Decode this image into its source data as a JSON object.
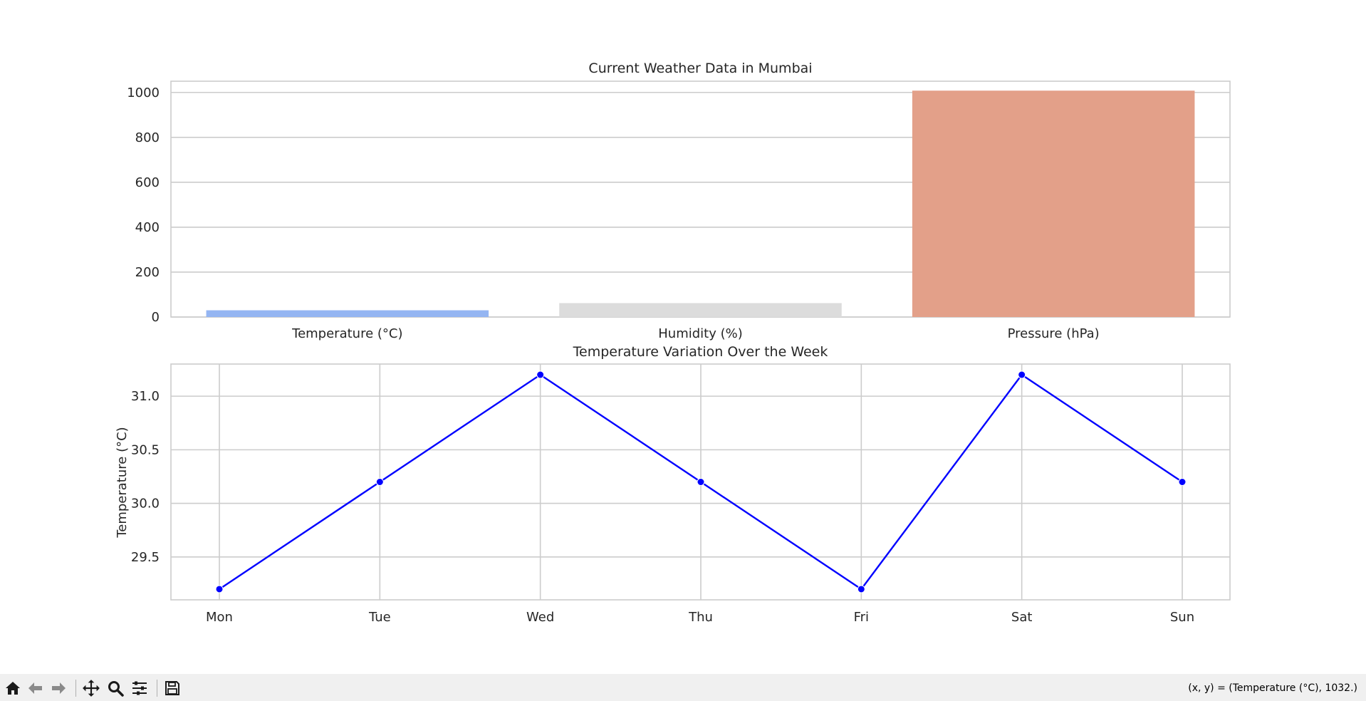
{
  "chart_data": [
    {
      "type": "bar",
      "title": "Current Weather Data in Mumbai",
      "categories": [
        "Temperature (°C)",
        "Humidity (%)",
        "Pressure (hPa)"
      ],
      "values": [
        30,
        62,
        1008
      ],
      "colors": [
        "#94b5f2",
        "#dcdcdc",
        "#e3a089"
      ],
      "ylim": [
        0,
        1050
      ],
      "yticks": [
        0,
        200,
        400,
        600,
        800,
        1000
      ],
      "xlabel": "",
      "ylabel": "",
      "grid": true
    },
    {
      "type": "line",
      "title": "Temperature Variation Over the Week",
      "categories": [
        "Mon",
        "Tue",
        "Wed",
        "Thu",
        "Fri",
        "Sat",
        "Sun"
      ],
      "values": [
        29.2,
        30.2,
        31.2,
        30.2,
        29.2,
        31.2,
        30.2
      ],
      "color": "#0000ff",
      "ylim": [
        29.1,
        31.3
      ],
      "yticks": [
        "29.5",
        "30.0",
        "30.5",
        "31.0"
      ],
      "xlabel": "",
      "ylabel": "Temperature (°C)",
      "grid": true,
      "marker": "o"
    }
  ],
  "toolbar": {
    "icons": [
      "home-icon",
      "back-arrow-icon",
      "forward-arrow-icon",
      "pan-icon",
      "zoom-icon",
      "configure-icon",
      "save-icon"
    ],
    "coordinates_text": "(x, y) = (Temperature (°C), 1032.)"
  }
}
